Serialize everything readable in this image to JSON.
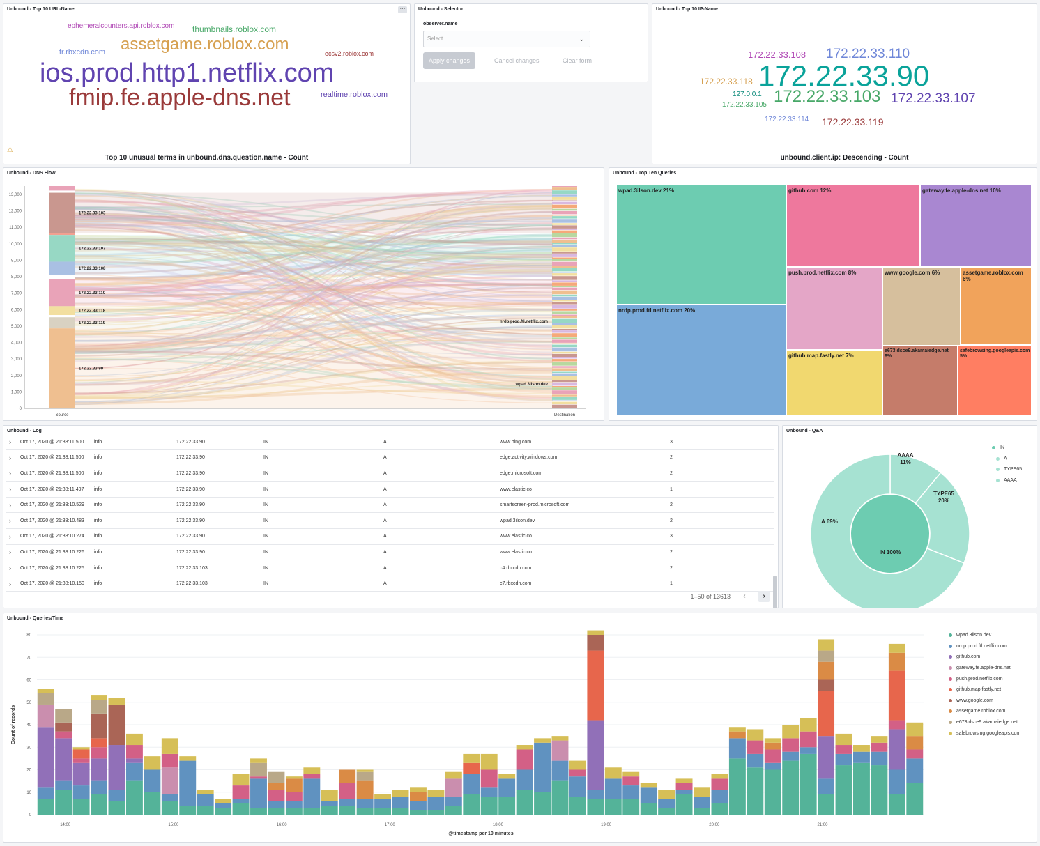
{
  "panels": {
    "top_url": {
      "title": "Unbound - Top 10 URL-Name",
      "caption": "Top 10 unusual terms in unbound.dns.question.name - Count",
      "words": [
        {
          "text": "ephemeralcounters.api.roblox.com",
          "color": "#b048b5"
        },
        {
          "text": "thumbnails.roblox.com",
          "color": "#48a868"
        },
        {
          "text": "assetgame.roblox.com",
          "color": "#d6a050"
        },
        {
          "text": "tr.rbxcdn.com",
          "color": "#6f87d8"
        },
        {
          "text": "ecsv2.roblox.com",
          "color": "#9a3333"
        },
        {
          "text": "ios.prod.http1.netflix.com",
          "color": "#6044b0"
        },
        {
          "text": "fmip.fe.apple-dns.net",
          "color": "#9a3a3a"
        },
        {
          "text": "realtime.roblox.com",
          "color": "#6044b0"
        }
      ]
    },
    "selector": {
      "title": "Unbound - Selector",
      "field_label": "observer.name",
      "select_placeholder": "Select...",
      "apply": "Apply changes",
      "cancel": "Cancel changes",
      "clear": "Clear form"
    },
    "top_ip": {
      "title": "Unbound - Top 10 IP-Name",
      "caption": "unbound.client.ip: Descending - Count",
      "words": [
        {
          "text": "172.22.33.108",
          "color": "#b048b5"
        },
        {
          "text": "172.22.33.110",
          "color": "#6f87d8"
        },
        {
          "text": "172.22.33.118",
          "color": "#d6a050"
        },
        {
          "text": "172.22.33.90",
          "color": "#0aa39a"
        },
        {
          "text": "127.0.0.1",
          "color": "#0a8a7a"
        },
        {
          "text": "172.22.33.103",
          "color": "#48a868"
        },
        {
          "text": "172.22.33.107",
          "color": "#6044b0"
        },
        {
          "text": "172.22.33.105",
          "color": "#48a868"
        },
        {
          "text": "172.22.33.114",
          "color": "#6f87d8"
        },
        {
          "text": "172.22.33.119",
          "color": "#9a3a3a"
        }
      ]
    },
    "dns_flow": {
      "title": "Unbound - DNS Flow",
      "yticks": [
        "13,000",
        "12,000",
        "11,000",
        "10,000",
        "9,000",
        "8,000",
        "7,000",
        "6,000",
        "5,000",
        "4,000",
        "3,000",
        "2,000",
        "1,000",
        "0"
      ],
      "source_label": "Source",
      "dest_label": "Destination",
      "sources": [
        {
          "label": "172.22.33.103",
          "color": "#c9978f"
        },
        {
          "label": "172.22.33.107",
          "color": "#97d8c4"
        },
        {
          "label": "172.22.33.108",
          "color": "#a9c0e3"
        },
        {
          "label": "172.22.33.110",
          "color": "#e9a3b8"
        },
        {
          "label": "172.22.33.118",
          "color": "#f2dfa0"
        },
        {
          "label": "172.22.33.119",
          "color": "#d9d2c2"
        },
        {
          "label": "172.22.33.90",
          "color": "#efbf90"
        }
      ],
      "dest_labels": [
        "nrdp.prod.ftl.netflix.com",
        "wpad.3ilson.dev"
      ]
    },
    "top_queries": {
      "title": "Unbound - Top Ten Queries",
      "items": [
        {
          "label": "wpad.3ilson.dev",
          "pct": "21%",
          "color": "#6dccb1"
        },
        {
          "label": "nrdp.prod.ftl.netflix.com",
          "pct": "20%",
          "color": "#79aad9"
        },
        {
          "label": "github.com",
          "pct": "12%",
          "color": "#ee789d"
        },
        {
          "label": "gateway.fe.apple-dns.net",
          "pct": "10%",
          "color": "#a987d1"
        },
        {
          "label": "push.prod.netflix.com",
          "pct": "8%",
          "color": "#e4a6c7"
        },
        {
          "label": "www.google.com",
          "pct": "6%",
          "color": "#d6bf9d"
        },
        {
          "label": "assetgame.roblox.com",
          "pct": "6%",
          "color": "#f1a35b"
        },
        {
          "label": "github.map.fastly.net",
          "pct": "7%",
          "color": "#f1d86f"
        },
        {
          "label": "e673.dsce9.akamaiedge.net",
          "pct": "6%",
          "color": "#c57c6a"
        },
        {
          "label": "safebrowsing.googleapis.com",
          "pct": "5%",
          "color": "#ff7e62"
        }
      ]
    },
    "log": {
      "title": "Unbound - Log",
      "rows": [
        [
          "Oct 17, 2020 @ 21:38:11.500",
          "info",
          "172.22.33.90",
          "IN",
          "A",
          "www.bing.com",
          "3"
        ],
        [
          "Oct 17, 2020 @ 21:38:11.500",
          "info",
          "172.22.33.90",
          "IN",
          "A",
          "edge.activity.windows.com",
          "2"
        ],
        [
          "Oct 17, 2020 @ 21:38:11.500",
          "info",
          "172.22.33.90",
          "IN",
          "A",
          "edge.microsoft.com",
          "2"
        ],
        [
          "Oct 17, 2020 @ 21:38:11.497",
          "info",
          "172.22.33.90",
          "IN",
          "A",
          "www.elastic.co",
          "1"
        ],
        [
          "Oct 17, 2020 @ 21:38:10.529",
          "info",
          "172.22.33.90",
          "IN",
          "A",
          "smartscreen-prod.microsoft.com",
          "2"
        ],
        [
          "Oct 17, 2020 @ 21:38:10.483",
          "info",
          "172.22.33.90",
          "IN",
          "A",
          "wpad.3ilson.dev",
          "2"
        ],
        [
          "Oct 17, 2020 @ 21:38:10.274",
          "info",
          "172.22.33.90",
          "IN",
          "A",
          "www.elastic.co",
          "3"
        ],
        [
          "Oct 17, 2020 @ 21:38:10.226",
          "info",
          "172.22.33.90",
          "IN",
          "A",
          "www.elastic.co",
          "2"
        ],
        [
          "Oct 17, 2020 @ 21:38:10.225",
          "info",
          "172.22.33.103",
          "IN",
          "A",
          "c4.rbxcdn.com",
          "2"
        ],
        [
          "Oct 17, 2020 @ 21:38:10.150",
          "info",
          "172.22.33.103",
          "IN",
          "A",
          "c7.rbxcdn.com",
          "1"
        ]
      ],
      "pager_text": "1–50 of 13613"
    },
    "qa": {
      "title": "Unbound - Q&A",
      "inner_label": "IN 100%",
      "slices": [
        {
          "name": "A",
          "pct": 69,
          "label": "A 69%"
        },
        {
          "name": "TYPE65",
          "pct": 20,
          "label": "TYPE65 20%"
        },
        {
          "name": "AAAA",
          "pct": 11,
          "label": "AAAA 11%"
        }
      ],
      "legend": [
        {
          "label": "IN",
          "color": "#6dccb1"
        },
        {
          "label": "A",
          "color": "#a6e2d2"
        },
        {
          "label": "TYPE65",
          "color": "#a6e2d2"
        },
        {
          "label": "AAAA",
          "color": "#a6e2d2"
        }
      ],
      "colors": {
        "inner": "#6dccb1",
        "outer": "#a6e2d2"
      }
    },
    "qt": {
      "title": "Unbound - Queries/Time",
      "ylabel": "Count of records",
      "xlabel": "@timestamp per 10 minutes"
    }
  },
  "chart_data": {
    "type": "bar",
    "stacked": true,
    "ylim": [
      0,
      80
    ],
    "yticks": [
      0,
      10,
      20,
      30,
      40,
      50,
      60,
      70,
      80
    ],
    "xticks": [
      "14:00",
      "15:00",
      "16:00",
      "17:00",
      "18:00",
      "19:00",
      "20:00",
      "21:00"
    ],
    "xtick_positions": [
      1.6,
      7.7,
      13.8,
      19.9,
      26,
      32.1,
      38.2,
      44.3
    ],
    "grid": true,
    "legend_position": "right",
    "series": [
      {
        "name": "wpad.3ilson.dev",
        "color": "#54b399",
        "values": [
          7,
          11,
          7,
          9,
          6,
          15,
          10,
          6,
          4,
          4,
          3,
          5,
          3,
          3,
          3,
          3,
          4,
          4,
          3,
          3,
          3,
          2,
          2,
          4,
          9,
          8,
          8,
          11,
          10,
          15,
          8,
          7,
          7,
          7,
          5,
          3,
          9,
          3,
          5,
          25,
          21,
          20,
          24,
          27,
          9,
          22,
          23,
          22,
          9,
          14
        ]
      },
      {
        "name": "nrdp.prod.ftl.netflix.com",
        "color": "#6092c0",
        "values": [
          5,
          4,
          6,
          6,
          5,
          8,
          10,
          3,
          20,
          5,
          2,
          2,
          13,
          3,
          3,
          13,
          2,
          3,
          4,
          4,
          5,
          4,
          6,
          4,
          9,
          4,
          8,
          9,
          22,
          9,
          9,
          4,
          9,
          6,
          7,
          4,
          2,
          5,
          6,
          9,
          6,
          3,
          4,
          3,
          7,
          5,
          5,
          6,
          11,
          11
        ]
      },
      {
        "name": "github.com",
        "color": "#9170b8",
        "values": [
          27,
          19,
          10,
          10,
          20,
          2,
          0,
          0,
          0,
          0,
          0,
          0,
          0,
          0,
          0,
          0,
          0,
          0,
          0,
          0,
          0,
          0,
          0,
          0,
          0,
          0,
          0,
          0,
          0,
          0,
          0,
          31,
          0,
          0,
          0,
          0,
          0,
          0,
          0,
          0,
          0,
          0,
          0,
          0,
          19,
          0,
          0,
          0,
          18,
          0
        ]
      },
      {
        "name": "gateway.fe.apple-dns.net",
        "color": "#ca8eae",
        "values": [
          10,
          0,
          0,
          0,
          0,
          0,
          0,
          12,
          0,
          0,
          0,
          0,
          0,
          0,
          0,
          0,
          0,
          0,
          0,
          0,
          0,
          0,
          0,
          8,
          0,
          0,
          0,
          0,
          0,
          9,
          0,
          0,
          0,
          0,
          0,
          0,
          0,
          0,
          0,
          0,
          0,
          0,
          0,
          0,
          0,
          0,
          0,
          0,
          0,
          0
        ]
      },
      {
        "name": "push.prod.netflix.com",
        "color": "#d36086",
        "values": [
          0,
          3,
          2,
          5,
          0,
          6,
          0,
          6,
          0,
          0,
          0,
          6,
          1,
          5,
          4,
          2,
          0,
          7,
          0,
          0,
          0,
          0,
          0,
          0,
          0,
          8,
          0,
          9,
          0,
          0,
          3,
          0,
          0,
          4,
          0,
          0,
          3,
          0,
          5,
          0,
          6,
          6,
          6,
          7,
          0,
          4,
          0,
          4,
          4,
          4
        ]
      },
      {
        "name": "github.map.fastly.net",
        "color": "#e7664c",
        "values": [
          0,
          0,
          4,
          4,
          0,
          0,
          0,
          0,
          0,
          0,
          0,
          0,
          0,
          0,
          0,
          0,
          0,
          0,
          0,
          0,
          0,
          0,
          0,
          0,
          5,
          0,
          0,
          0,
          0,
          0,
          0,
          31,
          0,
          0,
          0,
          0,
          0,
          0,
          0,
          0,
          0,
          0,
          0,
          0,
          20,
          0,
          0,
          0,
          22,
          0
        ]
      },
      {
        "name": "www.google.com",
        "color": "#aa6556",
        "values": [
          0,
          4,
          0,
          11,
          18,
          0,
          0,
          0,
          0,
          0,
          0,
          0,
          0,
          0,
          0,
          0,
          0,
          0,
          0,
          0,
          0,
          0,
          0,
          0,
          0,
          0,
          0,
          0,
          0,
          0,
          0,
          7,
          0,
          0,
          0,
          0,
          0,
          0,
          0,
          0,
          0,
          0,
          0,
          0,
          5,
          0,
          0,
          0,
          0,
          0
        ]
      },
      {
        "name": "assetgame.roblox.com",
        "color": "#da8b45",
        "values": [
          0,
          0,
          0,
          0,
          0,
          0,
          0,
          0,
          0,
          0,
          0,
          0,
          0,
          3,
          6,
          0,
          0,
          6,
          8,
          0,
          0,
          4,
          0,
          0,
          0,
          0,
          0,
          0,
          0,
          0,
          0,
          0,
          0,
          0,
          0,
          0,
          0,
          0,
          0,
          3,
          0,
          3,
          0,
          0,
          8,
          0,
          0,
          0,
          8,
          6
        ]
      },
      {
        "name": "e673.dsce9.akamaiedge.net",
        "color": "#b9a888",
        "values": [
          5,
          6,
          0,
          6,
          0,
          0,
          0,
          0,
          0,
          0,
          0,
          0,
          6,
          5,
          0,
          0,
          0,
          0,
          4,
          0,
          0,
          0,
          0,
          0,
          0,
          0,
          0,
          0,
          0,
          0,
          0,
          0,
          0,
          0,
          0,
          0,
          0,
          0,
          0,
          0,
          0,
          0,
          0,
          0,
          5,
          0,
          0,
          0,
          0,
          0
        ]
      },
      {
        "name": "safebrowsing.googleapis.com",
        "color": "#d6bf57",
        "values": [
          2,
          0,
          1,
          2,
          3,
          5,
          6,
          7,
          2,
          2,
          2,
          5,
          2,
          0,
          1,
          3,
          5,
          0,
          1,
          2,
          3,
          2,
          3,
          3,
          4,
          7,
          2,
          2,
          2,
          2,
          4,
          2,
          5,
          2,
          2,
          4,
          2,
          4,
          2,
          2,
          5,
          2,
          6,
          6,
          5,
          5,
          3,
          3,
          4,
          6
        ]
      }
    ]
  }
}
